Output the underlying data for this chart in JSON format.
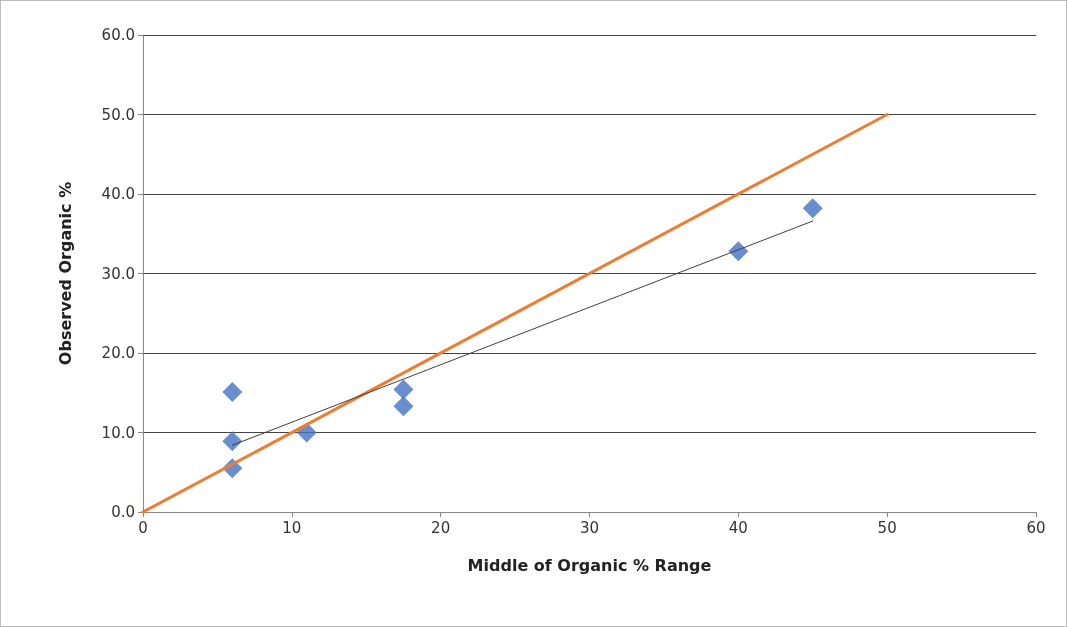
{
  "chart_data": {
    "type": "scatter",
    "xlabel": "Middle of Organic % Range",
    "ylabel": "Observed Organic %",
    "xlim": [
      0,
      60
    ],
    "xticks": [
      0,
      10,
      20,
      30,
      40,
      50,
      60
    ],
    "ylim": [
      0,
      60
    ],
    "yticks": [
      {
        "value": 0,
        "label": "0.0"
      },
      {
        "value": 10,
        "label": "10.0"
      },
      {
        "value": 20,
        "label": "20.0"
      },
      {
        "value": 30,
        "label": "30.0"
      },
      {
        "value": 40,
        "label": "40.0"
      },
      {
        "value": 50,
        "label": "50.0"
      },
      {
        "value": 60,
        "label": "60.0"
      }
    ],
    "grid": "y",
    "marker": "diamond",
    "series": [
      {
        "type": "line",
        "color": "#ed7d31",
        "marker": "none",
        "line_style": "solid",
        "x": [
          0,
          50
        ],
        "values": [
          0,
          50
        ]
      },
      {
        "type": "line",
        "color": "#404040",
        "marker": "none",
        "line_style": "solid",
        "x": [
          6,
          45
        ],
        "values": [
          8.4,
          36.6
        ]
      },
      {
        "color": "#4472c4",
        "x": [
          6,
          6,
          6,
          11,
          17.5,
          17.5,
          40,
          45
        ],
        "values": [
          15.1,
          8.9,
          5.5,
          10.0,
          15.4,
          13.3,
          32.8,
          38.2
        ]
      }
    ]
  }
}
